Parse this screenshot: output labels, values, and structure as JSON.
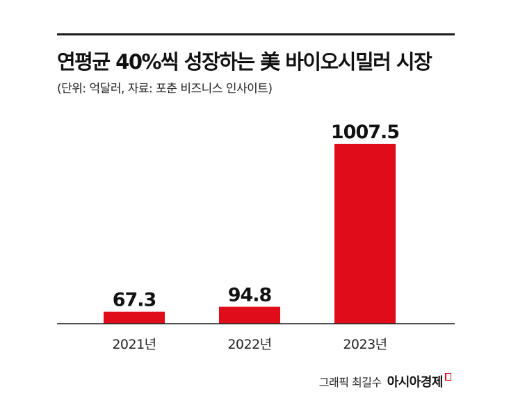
{
  "header": {
    "title": "연평균 40%씩 성장하는 美 바이오시밀러 시장",
    "subtitle": "(단위: 억달러, 자료: 포춘 비즈니스 인사이트)"
  },
  "chart_data": {
    "type": "bar",
    "categories": [
      "2021년",
      "2022년",
      "2023년"
    ],
    "values": [
      67.3,
      94.8,
      1007.5
    ],
    "value_labels": [
      "67.3",
      "94.8",
      "1007.5"
    ],
    "ylim": [
      0,
      1007.5
    ],
    "grid": false,
    "legend": "none",
    "bar_color": "#e00c1a"
  },
  "credit": {
    "name": "그래픽 최길수",
    "brand": "아시아경제"
  }
}
